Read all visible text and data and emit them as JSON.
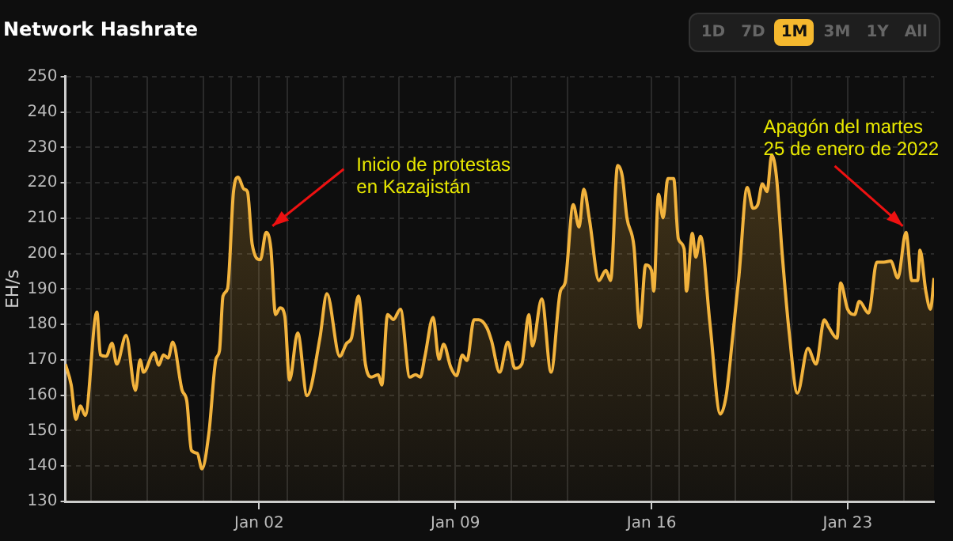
{
  "chart_data": {
    "type": "area",
    "title": "Network Hashrate",
    "ylabel": "EH/s",
    "annotations": [
      "1D",
      "7D",
      "1M",
      "3M",
      "1Y",
      "All",
      {
        "text": "Inicio de protestas\nen Kazajistán",
        "x": "2022-01-02T06:00",
        "y": 206
      },
      {
        "text": "Apagón del martes\n25 de enero de 2022",
        "x": "2022-01-25T02:00",
        "y": 206
      }
    ],
    "x": [
      "2021-12-26T02:00",
      "2021-12-26T07:00",
      "2021-12-26T11:00",
      "2021-12-26T15:00",
      "2021-12-26T19:00",
      "2021-12-27T05:00",
      "2021-12-27T08:00",
      "2021-12-27T13:00",
      "2021-12-27T18:00",
      "2021-12-27T22:00",
      "2021-12-28T06:00",
      "2021-12-28T14:00",
      "2021-12-28T18:00",
      "2021-12-28T21:00",
      "2021-12-29T06:00",
      "2021-12-29T10:00",
      "2021-12-29T14:00",
      "2021-12-29T18:00",
      "2021-12-29T22:00",
      "2021-12-30T06:00",
      "2021-12-30T10:00",
      "2021-12-30T14:00",
      "2021-12-30T19:00",
      "2021-12-30T23:00",
      "2021-12-31T05:00",
      "2021-12-31T11:00",
      "2021-12-31T14:00",
      "2021-12-31T17:00",
      "2021-12-31T21:00",
      "2022-01-01T02:00",
      "2022-01-01T06:00",
      "2022-01-01T11:00",
      "2022-01-01T14:00",
      "2022-01-01T18:00",
      "2022-01-02T01:00",
      "2022-01-02T06:00",
      "2022-01-02T10:00",
      "2022-01-02T14:00",
      "2022-01-02T18:00",
      "2022-01-02T22:00",
      "2022-01-03T02:00",
      "2022-01-03T09:00",
      "2022-01-03T17:00",
      "2022-01-04T04:00",
      "2022-01-04T10:00",
      "2022-01-04T21:00",
      "2022-01-05T03:00",
      "2022-01-05T07:00",
      "2022-01-05T13:00",
      "2022-01-05T19:00",
      "2022-01-06T00:00",
      "2022-01-06T06:00",
      "2022-01-06T09:00",
      "2022-01-06T14:00",
      "2022-01-06T19:00",
      "2022-01-07T01:00",
      "2022-01-07T09:00",
      "2022-01-07T14:00",
      "2022-01-07T18:00",
      "2022-01-07T22:00",
      "2022-01-08T05:00",
      "2022-01-08T10:00",
      "2022-01-08T14:00",
      "2022-01-08T20:00",
      "2022-01-09T01:00",
      "2022-01-09T06:00",
      "2022-01-09T10:00",
      "2022-01-09T16:00",
      "2022-01-09T20:00",
      "2022-01-10T03:00",
      "2022-01-10T07:00",
      "2022-01-10T14:00",
      "2022-01-10T21:00",
      "2022-01-11T03:00",
      "2022-01-11T09:00",
      "2022-01-11T15:00",
      "2022-01-11T18:00",
      "2022-01-12T02:00",
      "2022-01-12T10:00",
      "2022-01-12T18:00",
      "2022-01-12T22:00",
      "2022-01-13T05:00",
      "2022-01-13T10:00",
      "2022-01-13T14:00",
      "2022-01-13T19:00",
      "2022-01-14T03:00",
      "2022-01-14T09:00",
      "2022-01-14T13:00",
      "2022-01-14T19:00",
      "2022-01-14T23:00",
      "2022-01-15T03:00",
      "2022-01-15T09:00",
      "2022-01-15T14:00",
      "2022-01-15T19:00",
      "2022-01-16T00:00",
      "2022-01-16T02:00",
      "2022-01-16T06:00",
      "2022-01-16T10:00",
      "2022-01-16T14:00",
      "2022-01-16T19:00",
      "2022-01-16T23:00",
      "2022-01-17T04:00",
      "2022-01-17T06:00",
      "2022-01-17T11:00",
      "2022-01-17T14:00",
      "2022-01-17T18:00",
      "2022-01-18T02:00",
      "2022-01-18T11:00",
      "2022-01-18T16:00",
      "2022-01-18T21:00",
      "2022-01-19T03:00",
      "2022-01-19T10:00",
      "2022-01-19T15:00",
      "2022-01-19T19:00",
      "2022-01-19T23:00",
      "2022-01-20T03:00",
      "2022-01-20T07:00",
      "2022-01-20T11:00",
      "2022-01-20T16:00",
      "2022-01-20T22:00",
      "2022-01-21T05:00",
      "2022-01-21T14:00",
      "2022-01-21T21:00",
      "2022-01-22T04:00",
      "2022-01-22T08:00",
      "2022-01-22T15:00",
      "2022-01-22T18:00",
      "2022-01-23T00:00",
      "2022-01-23T06:00",
      "2022-01-23T10:00",
      "2022-01-23T18:00",
      "2022-01-24T01:00",
      "2022-01-24T07:00",
      "2022-01-24T13:00",
      "2022-01-24T19:00",
      "2022-01-25T02:00",
      "2022-01-25T07:00",
      "2022-01-25T12:00",
      "2022-01-25T14:00",
      "2022-01-25T19:00",
      "2022-01-25T23:00",
      "2022-01-26T02:00"
    ],
    "series": [
      {
        "color": "#f2b33d",
        "values": [
          168.8,
          162.9,
          153.2,
          157,
          154.3,
          183.5,
          171.4,
          171,
          174.7,
          168.8,
          176.9,
          161.4,
          170,
          166.5,
          172,
          168.5,
          171.4,
          170.5,
          175,
          161.4,
          158.4,
          144.4,
          143.6,
          139.2,
          149.5,
          170.2,
          172.5,
          188,
          190.2,
          217.5,
          221.6,
          218.2,
          217.5,
          202.7,
          198.3,
          206,
          201.5,
          182.8,
          184.7,
          182.3,
          164.3,
          177.6,
          159.9,
          176.1,
          188.7,
          171,
          174.7,
          176.1,
          188,
          168.8,
          165.1,
          165.8,
          162.9,
          182.8,
          181.4,
          184.3,
          165.1,
          165.8,
          165.1,
          171,
          182,
          170.2,
          174.4,
          168,
          165.5,
          171.3,
          169.8,
          181.3,
          181.3,
          179.1,
          175.4,
          166.5,
          175,
          167.6,
          168.8,
          182.8,
          173.9,
          187.2,
          166.5,
          189.4,
          191.7,
          213.8,
          207.5,
          218.2,
          209.4,
          192.4,
          195.3,
          192.4,
          224.9,
          221.9,
          210.1,
          202,
          179.1,
          196.8,
          195.3,
          189.4,
          216.8,
          210.1,
          221.2,
          221.2,
          204.2,
          201.3,
          189.4,
          205.7,
          199,
          204.9,
          180.6,
          154.7,
          159.9,
          174.7,
          193.9,
          218.7,
          212.8,
          213.8,
          219.7,
          217.5,
          227.8,
          221.9,
          199.8,
          177.6,
          160.6,
          173.2,
          168.8,
          181.3,
          179.1,
          176.1,
          191.7,
          184.3,
          182.8,
          186.5,
          183.2,
          197.6,
          197.6,
          197.9,
          193.1,
          206,
          192.4,
          192.4,
          201,
          189.4,
          184.3,
          193.1
        ]
      }
    ],
    "xlim": [
      "2021-12-26T02:00",
      "2022-01-26T02:00"
    ],
    "xticks": [
      {
        "value": "2021-12-27",
        "label": null
      },
      {
        "value": "2021-12-29",
        "label": null
      },
      {
        "value": "2021-12-31",
        "label": null
      },
      {
        "value": "2022-01-01",
        "label": null
      },
      {
        "value": "2022-01-02",
        "label": "Jan 02"
      },
      {
        "value": "2022-01-03",
        "label": null
      },
      {
        "value": "2022-01-05",
        "label": null
      },
      {
        "value": "2022-01-07",
        "label": null
      },
      {
        "value": "2022-01-09",
        "label": "Jan 09"
      },
      {
        "value": "2022-01-11",
        "label": null
      },
      {
        "value": "2022-01-13",
        "label": null
      },
      {
        "value": "2022-01-16",
        "label": "Jan 16"
      },
      {
        "value": "2022-01-17",
        "label": null
      },
      {
        "value": "2022-01-19",
        "label": null
      },
      {
        "value": "2022-01-21",
        "label": null
      },
      {
        "value": "2022-01-23",
        "label": "Jan 23"
      },
      {
        "value": "2022-01-25",
        "label": null
      }
    ],
    "ylim": [
      130,
      250
    ],
    "yticks": [
      130,
      140,
      150,
      160,
      170,
      180,
      190,
      200,
      210,
      220,
      230,
      240,
      250
    ],
    "grid": true,
    "legend": false,
    "marker": "none",
    "line_style": "solid"
  }
}
